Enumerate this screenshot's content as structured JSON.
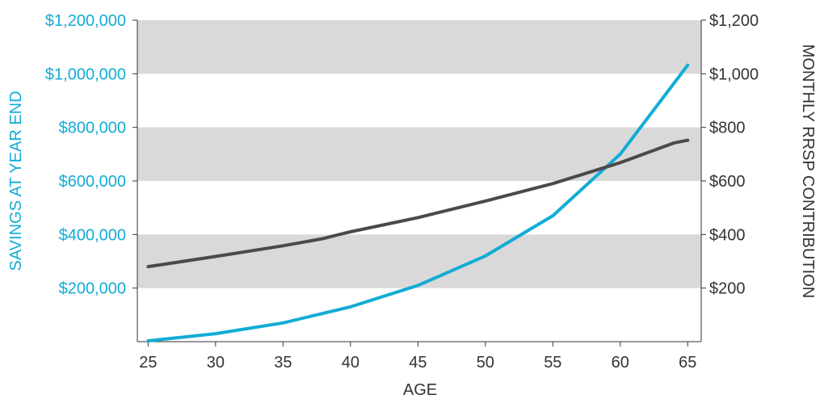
{
  "chart_data": {
    "type": "line",
    "title": "",
    "xlabel": "AGE",
    "ylabel_left": "SAVINGS AT YEAR END",
    "ylabel_right": "MONTHLY RRSP CONTRIBUTION",
    "xlim": [
      24.2,
      66
    ],
    "ylim_left": [
      0,
      1200000
    ],
    "ylim_right": [
      0,
      1200
    ],
    "x_ticks": [
      25,
      30,
      35,
      40,
      45,
      50,
      55,
      60,
      65
    ],
    "x_tick_labels": [
      "25",
      "30",
      "35",
      "40",
      "45",
      "50",
      "55",
      "60",
      "65"
    ],
    "y_left_ticks": [
      200000,
      400000,
      600000,
      800000,
      1000000,
      1200000
    ],
    "y_left_tick_labels": [
      "$200,000",
      "$400,000",
      "$600,000",
      "$800,000",
      "$1,000,000",
      "$1,200,000"
    ],
    "y_right_ticks": [
      200,
      400,
      600,
      800,
      1000,
      1200
    ],
    "y_right_tick_labels": [
      "$200",
      "$400",
      "$600",
      "$800",
      "$1,000",
      "$1,200"
    ],
    "grid": "alternating horizontal bands",
    "band_color": "#d9d9d9",
    "series": [
      {
        "axis": "left",
        "color": "#11acd6",
        "x": [
          25,
          30,
          35,
          40,
          45,
          50,
          55,
          60,
          65
        ],
        "values": [
          3000,
          30000,
          70000,
          130000,
          210000,
          320000,
          470000,
          700000,
          1032000
        ]
      },
      {
        "axis": "right",
        "color": "#4a4a4c",
        "x": [
          25,
          30,
          35,
          38,
          39,
          40,
          45,
          50,
          55,
          60,
          64,
          65
        ],
        "values": [
          280,
          318,
          358,
          385,
          398,
          410,
          463,
          525,
          590,
          668,
          742,
          752
        ]
      }
    ]
  }
}
